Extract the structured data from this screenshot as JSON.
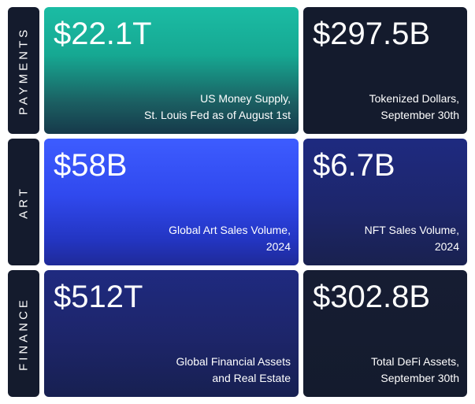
{
  "rows": [
    {
      "label": "PAYMENTS",
      "main": {
        "value": "$22.1T",
        "line1": "US Money Supply,",
        "line2": "St. Louis Fed as of August 1st"
      },
      "side": {
        "value": "$297.5B",
        "line1": "Tokenized Dollars,",
        "line2": "September 30th"
      }
    },
    {
      "label": "ART",
      "main": {
        "value": "$58B",
        "line1": "Global Art Sales Volume,",
        "line2": "2024"
      },
      "side": {
        "value": "$6.7B",
        "line1": "NFT Sales Volume,",
        "line2": "2024"
      }
    },
    {
      "label": "FINANCE",
      "main": {
        "value": "$512T",
        "line1": "Global Financial Assets",
        "line2": "and Real Estate"
      },
      "side": {
        "value": "$302.8B",
        "line1": "Total DeFi Assets,",
        "line2": "September 30th"
      }
    }
  ],
  "colors": {
    "dark_panel": "#141b2d",
    "payments_gradient_top": "#1bbca4",
    "art_gradient_top": "#3d5cff",
    "finance_gradient_top": "#1f2a80"
  }
}
